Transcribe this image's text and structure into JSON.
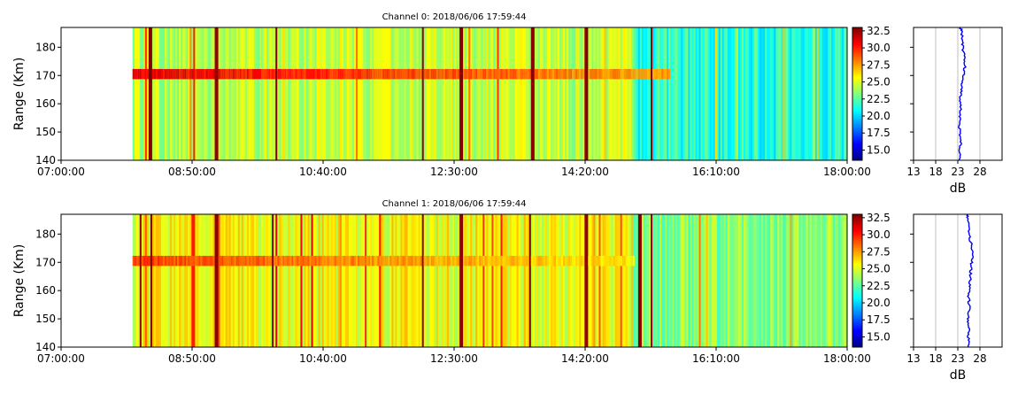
{
  "chart_data": [
    {
      "type": "heatmap",
      "title": "Channel 0: 2018/06/06 17:59:44",
      "xlabel": "",
      "ylabel": "Range (Km)",
      "x_ticks": [
        "07:00:00",
        "08:50:00",
        "10:40:00",
        "12:30:00",
        "14:20:00",
        "16:10:00",
        "18:00:00"
      ],
      "x_range": [
        "07:00:00",
        "18:00:00"
      ],
      "y_ticks": [
        140,
        150,
        160,
        170,
        180
      ],
      "ylim": [
        140,
        187
      ],
      "data_start": "08:00:00",
      "echo_layer": {
        "range_km": 170.5,
        "start": "08:00:00",
        "end": "15:30:00",
        "peak_db": 31
      },
      "strong_columns": [
        "08:14:00",
        "09:10:00",
        "10:00:00",
        "12:03:00",
        "12:35:00",
        "13:35:00",
        "14:20:00",
        "15:15:00"
      ],
      "background_db": {
        "before_1500": 24.5,
        "after_1500": 21.5
      },
      "colorbar": {
        "min": 13.5,
        "max": 33,
        "ticks": [
          15.0,
          17.5,
          20.0,
          22.5,
          25.0,
          27.5,
          30.0,
          32.5
        ],
        "colormap": "jet"
      },
      "profile": {
        "xlabel": "dB",
        "x_ticks": [
          13,
          18,
          23,
          28
        ],
        "xlim": [
          13,
          33
        ],
        "line_color": "#0000ff",
        "range_km": [
          140,
          143,
          146,
          149,
          152,
          155,
          158,
          161,
          164,
          167,
          170,
          173,
          176,
          179,
          182,
          185,
          187
        ],
        "db": [
          23.5,
          23.4,
          23.6,
          23.5,
          23.4,
          23.5,
          23.6,
          23.5,
          23.7,
          23.8,
          24.3,
          24.6,
          24.5,
          24.2,
          24.0,
          23.9,
          23.6
        ]
      }
    },
    {
      "type": "heatmap",
      "title": "Channel 1: 2018/06/06 17:59:44",
      "xlabel": "",
      "ylabel": "Range (Km)",
      "x_ticks": [
        "07:00:00",
        "08:50:00",
        "10:40:00",
        "12:30:00",
        "14:20:00",
        "16:10:00",
        "18:00:00"
      ],
      "x_range": [
        "07:00:00",
        "18:00:00"
      ],
      "y_ticks": [
        140,
        150,
        160,
        170,
        180
      ],
      "ylim": [
        140,
        187
      ],
      "data_start": "08:00:00",
      "echo_layer": {
        "range_km": 170.5,
        "start": "08:00:00",
        "end": "15:00:00",
        "peak_db": 29.5
      },
      "strong_columns": [
        "08:06:00",
        "08:15:00",
        "09:10:00",
        "09:57:00",
        "12:03:00",
        "12:35:00",
        "13:33:00",
        "14:20:00",
        "15:05:00",
        "15:15:00"
      ],
      "background_db": {
        "before_1500": 25.5,
        "after_1500": 23.5
      },
      "colorbar": {
        "min": 13.5,
        "max": 33,
        "ticks": [
          15.0,
          17.5,
          20.0,
          22.5,
          25.0,
          27.5,
          30.0,
          32.5
        ],
        "colormap": "jet"
      },
      "profile": {
        "xlabel": "dB",
        "x_ticks": [
          13,
          18,
          23,
          28
        ],
        "xlim": [
          13,
          33
        ],
        "line_color": "#0000ff",
        "range_km": [
          140,
          143,
          146,
          149,
          152,
          155,
          158,
          161,
          164,
          167,
          170,
          173,
          176,
          179,
          182,
          185,
          187
        ],
        "db": [
          25.6,
          25.4,
          25.5,
          25.3,
          25.5,
          25.6,
          25.4,
          25.7,
          25.8,
          25.9,
          26.1,
          26.4,
          26.2,
          25.6,
          25.4,
          25.2,
          25.3
        ]
      }
    }
  ]
}
